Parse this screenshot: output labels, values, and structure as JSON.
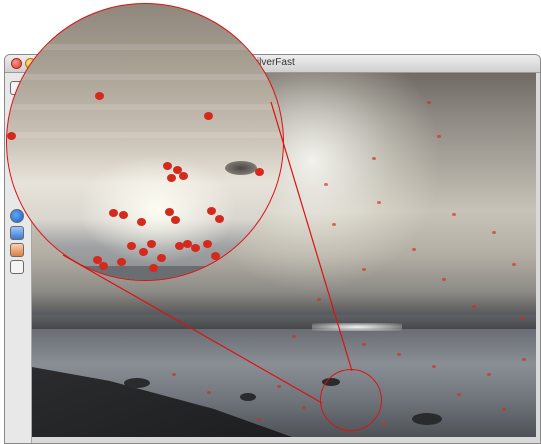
{
  "window": {
    "title": "SilverFast",
    "title_bar_buttons": [
      "close",
      "minimize"
    ]
  },
  "tools": [
    {
      "name": "tool-button-top-icon"
    },
    {
      "name": "info-circle-icon"
    },
    {
      "name": "blue-tool-icon"
    },
    {
      "name": "color-tool-icon"
    },
    {
      "name": "edit-tool-icon"
    }
  ],
  "colors": {
    "accent_red": "#d11111",
    "dust_marker": "#d42a1d"
  }
}
